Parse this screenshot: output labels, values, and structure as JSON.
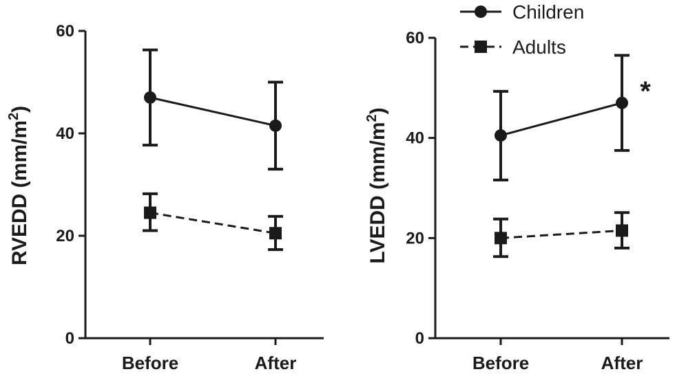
{
  "chart_data": [
    {
      "type": "line",
      "ylabel": "RVEDD (mm/m",
      "ylabel_sup": "2",
      "ylabel_end": ")",
      "categories": [
        "Before",
        "After"
      ],
      "ylim": [
        0,
        60
      ],
      "yticks": [
        "0",
        "20",
        "40",
        "60"
      ],
      "ytick_values": [
        0,
        20,
        40,
        60
      ],
      "series": [
        {
          "name": "Children",
          "values": [
            47,
            41.5
          ],
          "err_low": [
            37.7,
            33
          ],
          "err_high": [
            56.3,
            50
          ],
          "marker": "circle",
          "dashed": false
        },
        {
          "name": "Adults",
          "values": [
            24.5,
            20.5
          ],
          "err_low": [
            21,
            17.3
          ],
          "err_high": [
            28.2,
            23.8
          ],
          "marker": "square",
          "dashed": true
        }
      ],
      "annotations": []
    },
    {
      "type": "line",
      "ylabel": "LVEDD (mm/m",
      "ylabel_sup": "2",
      "ylabel_end": ")",
      "categories": [
        "Before",
        "After"
      ],
      "ylim": [
        0,
        60
      ],
      "yticks": [
        "0",
        "20",
        "40",
        "60"
      ],
      "ytick_values": [
        0,
        20,
        40,
        60
      ],
      "series": [
        {
          "name": "Children",
          "values": [
            40.5,
            47
          ],
          "err_low": [
            31.6,
            37.5
          ],
          "err_high": [
            49.3,
            56.5
          ],
          "marker": "circle",
          "dashed": false
        },
        {
          "name": "Adults",
          "values": [
            20,
            21.5
          ],
          "err_low": [
            16.3,
            18
          ],
          "err_high": [
            23.8,
            25.1
          ],
          "marker": "square",
          "dashed": true
        }
      ],
      "annotations": [
        {
          "text": "*",
          "category": "After",
          "y": 50
        }
      ]
    }
  ],
  "legend": {
    "items": [
      {
        "label": "Children",
        "marker": "circle",
        "dashed": false
      },
      {
        "label": "Adults",
        "marker": "square",
        "dashed": true
      }
    ],
    "placement": "top-right"
  },
  "colors": {
    "ink": "#1a1a1a",
    "background": "#ffffff"
  }
}
